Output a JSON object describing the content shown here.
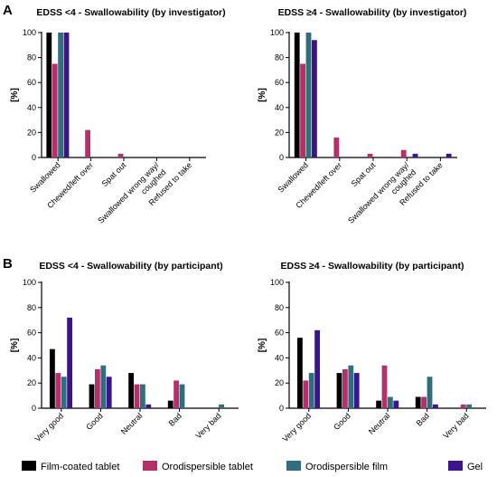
{
  "panels": [
    {
      "letter": "A"
    },
    {
      "letter": "B"
    }
  ],
  "colors": {
    "Film-coated tablet": "#000000",
    "Orodispersible tablet": "#b5306a",
    "Orodispersible film": "#2f6e7c",
    "Gel": "#3a1488"
  },
  "legend": [
    {
      "label": "Film-coated tablet",
      "color": "#000000"
    },
    {
      "label": "Orodispersible tablet",
      "color": "#b5306a"
    },
    {
      "label": "Orodispersible film",
      "color": "#2f6e7c"
    },
    {
      "label": "Gel",
      "color": "#3a1488"
    }
  ],
  "chart_data": [
    {
      "type": "bar",
      "title": "EDSS <4 - Swallowability (by investigator)",
      "ylabel": "[%]",
      "ylim": [
        0,
        100
      ],
      "yticks": [
        "0",
        "20",
        "40",
        "60",
        "80",
        "100"
      ],
      "categories": [
        "Swallowed",
        "Chewed/left over",
        "Spat out",
        "Swallowed wrong way/\ncoughed",
        "Refused to take"
      ],
      "series": [
        {
          "name": "Film-coated tablet",
          "values": [
            100,
            0,
            0,
            0,
            0
          ]
        },
        {
          "name": "Orodispersible tablet",
          "values": [
            75,
            22,
            3,
            0,
            0
          ]
        },
        {
          "name": "Orodispersible film",
          "values": [
            100,
            0,
            0,
            0,
            0
          ]
        },
        {
          "name": "Gel",
          "values": [
            100,
            0,
            0,
            0,
            0
          ]
        }
      ],
      "grid": false
    },
    {
      "type": "bar",
      "title": "EDSS ≥4 - Swallowability (by investigator)",
      "ylabel": "[%]",
      "ylim": [
        0,
        100
      ],
      "yticks": [
        "0",
        "20",
        "40",
        "60",
        "80",
        "100"
      ],
      "categories": [
        "Swallowed",
        "Chewed/left over",
        "Spat out",
        "Swallowed wrong way/\ncoughed",
        "Refused to take"
      ],
      "series": [
        {
          "name": "Film-coated tablet",
          "values": [
            100,
            0,
            0,
            0,
            0
          ]
        },
        {
          "name": "Orodispersible tablet",
          "values": [
            75,
            16,
            3,
            6,
            0
          ]
        },
        {
          "name": "Orodispersible film",
          "values": [
            100,
            0,
            0,
            0,
            0
          ]
        },
        {
          "name": "Gel",
          "values": [
            94,
            0,
            0,
            3,
            3
          ]
        }
      ],
      "grid": false
    },
    {
      "type": "bar",
      "title": "EDSS <4 - Swallowability (by participant)",
      "ylabel": "[%]",
      "ylim": [
        0,
        100
      ],
      "yticks": [
        "0",
        "20",
        "40",
        "60",
        "80",
        "100"
      ],
      "categories": [
        "Very good",
        "Good",
        "Neutral",
        "Bad",
        "Very bad"
      ],
      "series": [
        {
          "name": "Film-coated tablet",
          "values": [
            47,
            19,
            28,
            6,
            0
          ]
        },
        {
          "name": "Orodispersible tablet",
          "values": [
            28,
            31,
            19,
            22,
            0
          ]
        },
        {
          "name": "Orodispersible film",
          "values": [
            25,
            34,
            19,
            19,
            3
          ]
        },
        {
          "name": "Gel",
          "values": [
            72,
            25,
            3,
            0,
            0
          ]
        }
      ],
      "grid": false
    },
    {
      "type": "bar",
      "title": "EDSS ≥4 - Swallowability (by participant)",
      "ylabel": "[%]",
      "ylim": [
        0,
        100
      ],
      "yticks": [
        "0",
        "20",
        "40",
        "60",
        "80",
        "100"
      ],
      "categories": [
        "Very good",
        "Good",
        "Neutral",
        "Bad",
        "Very bad"
      ],
      "series": [
        {
          "name": "Film-coated tablet",
          "values": [
            56,
            28,
            6,
            9,
            0
          ]
        },
        {
          "name": "Orodispersible tablet",
          "values": [
            22,
            31,
            34,
            9,
            3
          ]
        },
        {
          "name": "Orodispersible film",
          "values": [
            28,
            34,
            9,
            25,
            3
          ]
        },
        {
          "name": "Gel",
          "values": [
            62,
            28,
            6,
            3,
            0
          ]
        }
      ],
      "grid": false
    }
  ]
}
